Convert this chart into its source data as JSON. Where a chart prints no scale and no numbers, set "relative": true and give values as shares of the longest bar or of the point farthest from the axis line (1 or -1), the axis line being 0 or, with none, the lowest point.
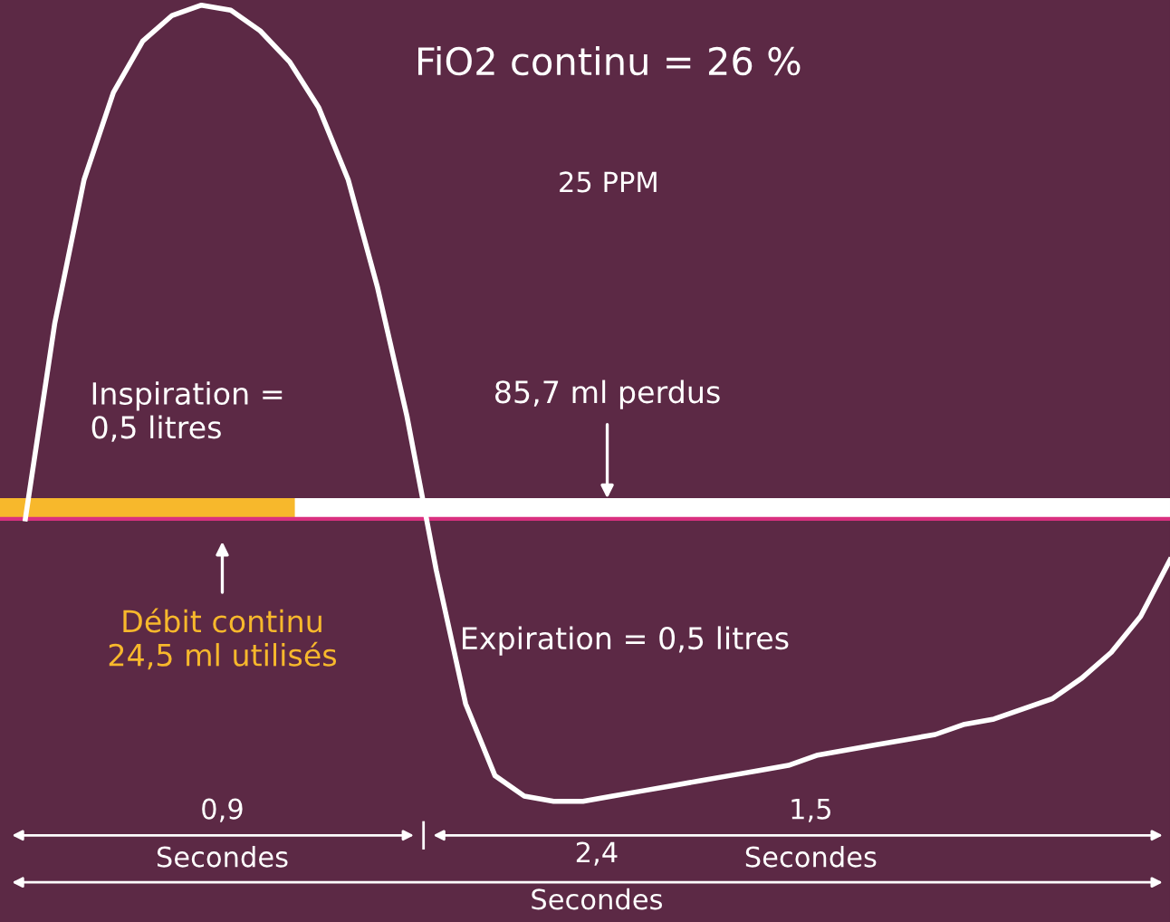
{
  "chart_data": {
    "type": "line",
    "relative": true,
    "title": "FiO2 continu = 26 %",
    "subtitle": "25 PPM",
    "line_style": "solid",
    "categories": [
      null,
      null,
      null,
      null,
      null,
      null,
      null,
      null,
      null,
      null,
      null,
      null,
      null,
      null,
      null,
      null,
      null,
      null,
      null,
      null,
      null,
      null,
      null,
      null,
      null,
      null,
      null,
      null,
      null,
      null,
      null,
      null,
      null,
      null,
      null,
      null,
      null,
      null,
      null,
      null
    ],
    "series": [
      {
        "color": "#ffffff",
        "values": [
          0,
          0.38,
          0.66,
          0.83,
          0.93,
          0.98,
          1.0,
          0.99,
          0.95,
          0.89,
          0.8,
          0.66,
          0.45,
          0.2,
          -0.1,
          -0.36,
          -0.5,
          -0.54,
          -0.55,
          -0.55,
          -0.54,
          -0.53,
          -0.52,
          -0.51,
          -0.5,
          -0.49,
          -0.48,
          -0.46,
          -0.45,
          -0.44,
          -0.43,
          -0.42,
          -0.4,
          -0.39,
          -0.37,
          -0.35,
          -0.31,
          -0.26,
          -0.19,
          -0.08
        ]
      }
    ],
    "ref_lines": [
      {
        "axis": "y",
        "value": 0,
        "color": "#d9307f"
      }
    ],
    "bands": [
      {
        "axis": "y",
        "from": 0,
        "to": 0.04,
        "color": "#ffffff"
      },
      {
        "axis": "y",
        "from": 0,
        "to": 0.04,
        "color": "#f7b82c"
      }
    ],
    "annotations": [
      "Inspiration =\n0,5 litres",
      "Expiration = 0,5 litres",
      "85,7 ml perdus",
      "Débit continu\n24,5 ml utilisés",
      "0,9",
      "Secondes",
      "1,5",
      "Secondes",
      "2,4",
      "Secondes"
    ]
  }
}
